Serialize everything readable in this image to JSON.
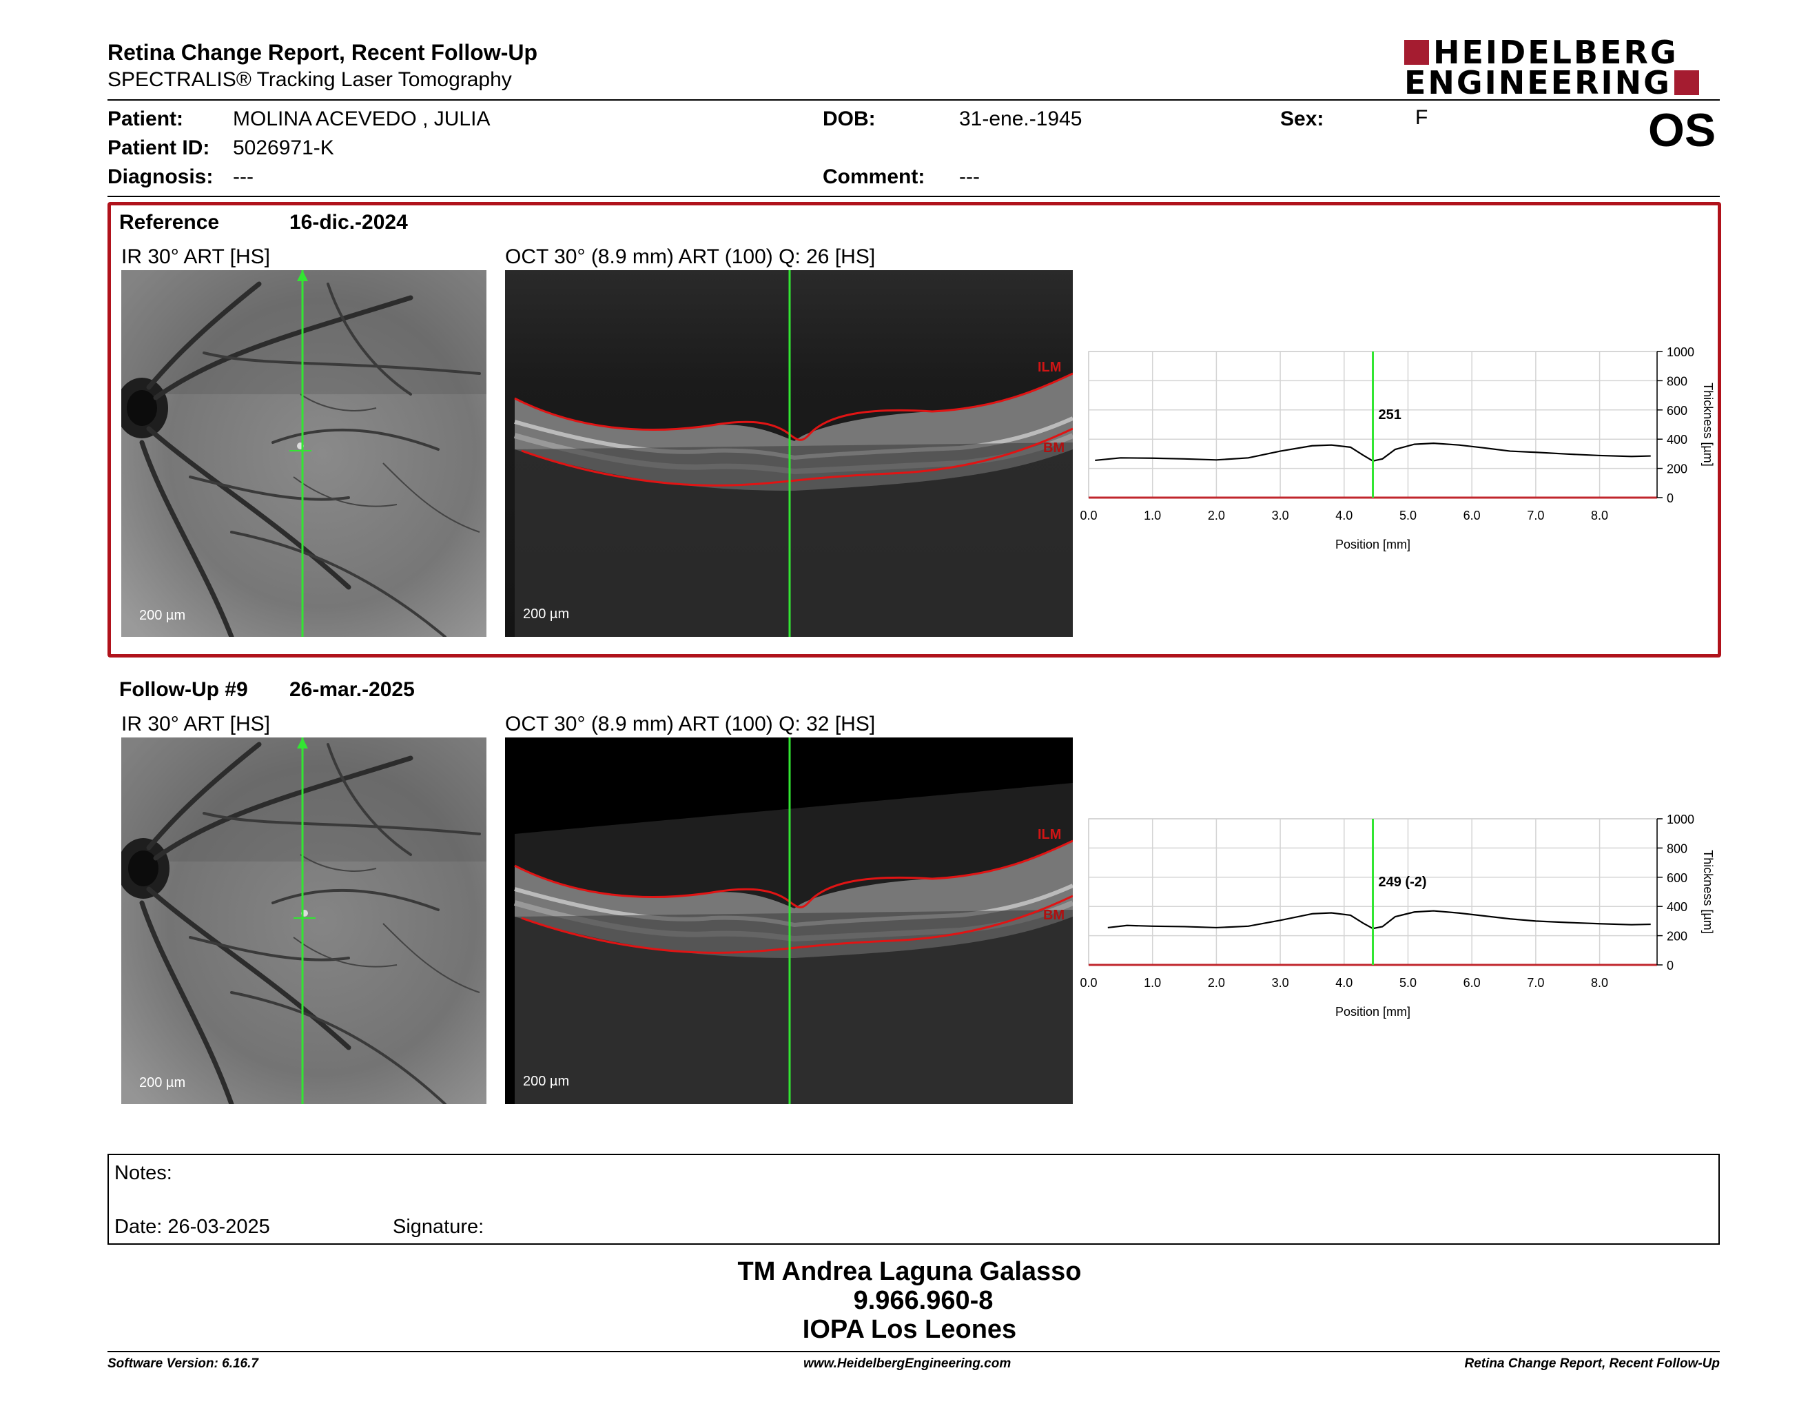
{
  "header": {
    "title": "Retina Change Report, Recent Follow-Up",
    "subtitle": "SPECTRALIS® Tracking Laser Tomography",
    "logo_line1": "HEIDELBERG",
    "logo_line2": "ENGINEERING",
    "brand_color": "#a51c30",
    "eye": "OS"
  },
  "patient": {
    "patient_label": "Patient:",
    "patient_value": "MOLINA ACEVEDO , JULIA",
    "id_label": "Patient ID:",
    "id_value": "5026971-K",
    "diagnosis_label": "Diagnosis:",
    "diagnosis_value": "---",
    "dob_label": "DOB:",
    "dob_value": "31-ene.-1945",
    "comment_label": "Comment:",
    "comment_value": "---",
    "sex_label": "Sex:",
    "sex_value": "F"
  },
  "exams": [
    {
      "label": "Reference",
      "date": "16-dic.-2024",
      "ir_title": "IR 30° ART [HS]",
      "oct_title": "OCT 30° (8.9 mm) ART (100) Q: 26 [HS]",
      "scale_label": "200 µm",
      "ilm_label": "ILM",
      "bm_label": "BM",
      "chart_value_label": "251"
    },
    {
      "label": "Follow-Up #9",
      "date": "26-mar.-2025",
      "ir_title": "IR 30° ART [HS]",
      "oct_title": "OCT 30° (8.9 mm) ART (100) Q: 32 [HS]",
      "scale_label": "200 µm",
      "ilm_label": "ILM",
      "bm_label": "BM",
      "chart_value_label": "249 (-2)"
    }
  ],
  "chart_data": [
    {
      "type": "line",
      "xlabel": "Position [mm]",
      "ylabel": "Thickness [µm]",
      "xlim": [
        0,
        8.9
      ],
      "ylim": [
        0,
        1000
      ],
      "x_ticks": [
        "0.0",
        "1.0",
        "2.0",
        "3.0",
        "4.0",
        "5.0",
        "6.0",
        "7.0",
        "8.0"
      ],
      "y_ticks": [
        "0",
        "200",
        "400",
        "600",
        "800",
        "1000"
      ],
      "grid": true,
      "marker_x": 4.45,
      "marker_value": 251,
      "x": [
        0.1,
        0.5,
        1.0,
        1.5,
        2.0,
        2.5,
        3.0,
        3.5,
        3.8,
        4.1,
        4.3,
        4.45,
        4.6,
        4.8,
        5.1,
        5.4,
        5.8,
        6.2,
        6.6,
        7.0,
        7.5,
        8.0,
        8.5,
        8.8
      ],
      "y": [
        255,
        272,
        270,
        265,
        258,
        272,
        318,
        355,
        360,
        345,
        290,
        251,
        265,
        330,
        365,
        372,
        360,
        340,
        318,
        310,
        298,
        288,
        282,
        285
      ]
    },
    {
      "type": "line",
      "xlabel": "Position [mm]",
      "ylabel": "Thickness [µm]",
      "xlim": [
        0,
        8.9
      ],
      "ylim": [
        0,
        1000
      ],
      "x_ticks": [
        "0.0",
        "1.0",
        "2.0",
        "3.0",
        "4.0",
        "5.0",
        "6.0",
        "7.0",
        "8.0"
      ],
      "y_ticks": [
        "0",
        "200",
        "400",
        "600",
        "800",
        "1000"
      ],
      "grid": true,
      "marker_x": 4.45,
      "marker_value": 249,
      "x": [
        0.3,
        0.6,
        1.0,
        1.5,
        2.0,
        2.5,
        3.0,
        3.5,
        3.8,
        4.1,
        4.3,
        4.45,
        4.6,
        4.8,
        5.1,
        5.4,
        5.8,
        6.2,
        6.6,
        7.0,
        7.5,
        8.0,
        8.5,
        8.8
      ],
      "y": [
        255,
        270,
        265,
        262,
        255,
        265,
        305,
        350,
        356,
        340,
        285,
        249,
        262,
        330,
        362,
        370,
        355,
        335,
        315,
        300,
        290,
        282,
        275,
        278
      ]
    }
  ],
  "notes": {
    "notes_label": "Notes:",
    "date_label": "Date: 26-03-2025",
    "signature_label": "Signature:"
  },
  "signatory": {
    "name": "TM Andrea Laguna Galasso",
    "rut": "9.966.960-8",
    "institution": "IOPA Los Leones"
  },
  "footer": {
    "software": "Software Version: 6.16.7",
    "website": "www.HeidelbergEngineering.com",
    "report_name": "Retina Change Report, Recent Follow-Up"
  }
}
